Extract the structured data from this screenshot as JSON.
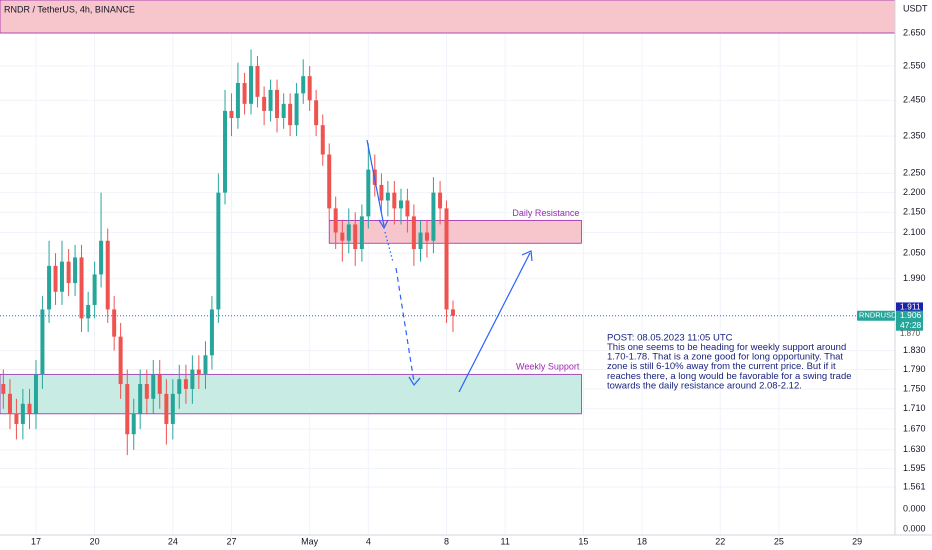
{
  "chart_data": {
    "type": "candlestick",
    "title": "RNDR / TetherUS, 4h, BINANCE",
    "currency": "USDT",
    "log_scale": true,
    "grid": true,
    "up_color": "#26a69a",
    "down_color": "#ef5350",
    "xlim": [
      -1.84,
      43.94
    ],
    "xticks": [
      {
        "value": 0,
        "label": "17"
      },
      {
        "value": 3,
        "label": "20"
      },
      {
        "value": 7,
        "label": "24"
      },
      {
        "value": 10,
        "label": "27"
      },
      {
        "value": 14,
        "label": "May"
      },
      {
        "value": 17,
        "label": "4"
      },
      {
        "value": 21,
        "label": "8"
      },
      {
        "value": 24,
        "label": "11"
      },
      {
        "value": 28,
        "label": "15"
      },
      {
        "value": 31,
        "label": "18"
      },
      {
        "value": 35,
        "label": "22"
      },
      {
        "value": 38,
        "label": "25"
      },
      {
        "value": 42,
        "label": "29"
      }
    ],
    "ylim": [
      1.476,
      2.754
    ],
    "yticks": [
      {
        "value": 2.65,
        "label": "2.650"
      },
      {
        "value": 2.55,
        "label": "2.550"
      },
      {
        "value": 2.45,
        "label": "2.450"
      },
      {
        "value": 2.35,
        "label": "2.350"
      },
      {
        "value": 2.25,
        "label": "2.250"
      },
      {
        "value": 2.2,
        "label": "2.200"
      },
      {
        "value": 2.15,
        "label": "2.150"
      },
      {
        "value": 2.1,
        "label": "2.100"
      },
      {
        "value": 2.05,
        "label": "2.050"
      },
      {
        "value": 1.99,
        "label": "1.990"
      },
      {
        "value": 1.83,
        "label": "1.830"
      },
      {
        "value": 1.79,
        "label": "1.790"
      },
      {
        "value": 1.75,
        "label": "1.750"
      },
      {
        "value": 1.71,
        "label": "1.710"
      },
      {
        "value": 1.67,
        "label": "1.670"
      },
      {
        "value": 1.63,
        "label": "1.630"
      },
      1.595,
      1.561
    ],
    "lower_axis_labels": [
      "0.000",
      "0.000"
    ],
    "x": [
      -1.67,
      -1.33,
      -1.0,
      -0.67,
      -0.33,
      0.0,
      0.33,
      0.67,
      1.0,
      1.33,
      1.67,
      2.0,
      2.33,
      2.67,
      3.0,
      3.33,
      3.67,
      4.0,
      4.33,
      4.67,
      5.0,
      5.33,
      5.67,
      6.0,
      6.33,
      6.67,
      7.0,
      7.33,
      7.67,
      8.0,
      8.33,
      8.67,
      9.0,
      9.33,
      9.67,
      10.0,
      10.33,
      10.67,
      11.0,
      11.33,
      11.67,
      12.0,
      12.33,
      12.67,
      13.0,
      13.33,
      13.67,
      14.0,
      14.33,
      14.67,
      15.0,
      15.33,
      15.67,
      16.0,
      16.33,
      16.67,
      17.0,
      17.33,
      17.67,
      18.0,
      18.33,
      18.67,
      19.0,
      19.33,
      19.67,
      20.0,
      20.33,
      20.67,
      21.0,
      21.33
    ],
    "open": [
      1.76,
      1.74,
      1.7,
      1.68,
      1.72,
      1.7,
      1.78,
      1.92,
      2.02,
      1.96,
      2.03,
      1.98,
      2.04,
      1.9,
      1.93,
      2.0,
      2.08,
      1.92,
      1.86,
      1.76,
      1.66,
      1.7,
      1.76,
      1.73,
      1.78,
      1.74,
      1.68,
      1.74,
      1.77,
      1.75,
      1.79,
      1.78,
      1.82,
      1.92,
      2.2,
      2.42,
      2.4,
      2.5,
      2.44,
      2.55,
      2.46,
      2.42,
      2.48,
      2.4,
      2.44,
      2.38,
      2.47,
      2.52,
      2.45,
      2.38,
      2.3,
      2.16,
      2.1,
      2.08,
      2.12,
      2.06,
      2.14,
      2.26,
      2.22,
      2.18,
      2.2,
      2.16,
      2.18,
      2.14,
      2.06,
      2.1,
      2.08,
      2.2,
      2.16,
      1.92
    ],
    "high": [
      1.79,
      1.77,
      1.73,
      1.75,
      1.75,
      1.81,
      1.95,
      2.08,
      2.05,
      2.08,
      2.06,
      2.07,
      2.07,
      1.96,
      2.03,
      2.2,
      2.11,
      1.95,
      1.89,
      1.79,
      1.73,
      1.79,
      1.79,
      1.81,
      1.81,
      1.77,
      1.77,
      1.8,
      1.8,
      1.82,
      1.82,
      1.85,
      1.95,
      2.25,
      2.48,
      2.47,
      2.56,
      2.53,
      2.6,
      2.58,
      2.49,
      2.51,
      2.51,
      2.47,
      2.47,
      2.5,
      2.57,
      2.55,
      2.48,
      2.41,
      2.33,
      2.19,
      2.13,
      2.16,
      2.15,
      2.17,
      2.33,
      2.3,
      2.25,
      2.23,
      2.23,
      2.21,
      2.21,
      2.17,
      2.13,
      2.13,
      2.24,
      2.23,
      2.18,
      1.94
    ],
    "low": [
      1.71,
      1.67,
      1.65,
      1.65,
      1.67,
      1.67,
      1.75,
      1.89,
      1.93,
      1.93,
      1.95,
      1.95,
      1.87,
      1.87,
      1.9,
      1.97,
      1.89,
      1.83,
      1.73,
      1.62,
      1.63,
      1.67,
      1.7,
      1.7,
      1.71,
      1.64,
      1.65,
      1.71,
      1.72,
      1.72,
      1.75,
      1.75,
      1.79,
      1.89,
      2.17,
      2.35,
      2.37,
      2.41,
      2.41,
      2.43,
      2.38,
      2.39,
      2.36,
      2.37,
      2.35,
      2.35,
      2.44,
      2.42,
      2.35,
      2.27,
      2.13,
      2.06,
      2.03,
      2.05,
      2.02,
      2.03,
      2.11,
      2.19,
      2.15,
      2.14,
      2.12,
      2.12,
      2.1,
      2.02,
      2.03,
      2.04,
      2.05,
      2.12,
      1.89,
      1.87
    ],
    "close": [
      1.74,
      1.7,
      1.68,
      1.72,
      1.7,
      1.78,
      1.92,
      2.02,
      1.96,
      2.03,
      1.98,
      2.04,
      1.9,
      1.93,
      2.0,
      2.08,
      1.92,
      1.86,
      1.76,
      1.66,
      1.7,
      1.76,
      1.73,
      1.78,
      1.74,
      1.68,
      1.74,
      1.77,
      1.75,
      1.79,
      1.78,
      1.82,
      1.92,
      2.2,
      2.42,
      2.4,
      2.5,
      2.44,
      2.55,
      2.46,
      2.42,
      2.48,
      2.4,
      2.44,
      2.38,
      2.47,
      2.52,
      2.45,
      2.38,
      2.3,
      2.16,
      2.1,
      2.08,
      2.12,
      2.06,
      2.14,
      2.26,
      2.22,
      2.18,
      2.2,
      2.16,
      2.18,
      2.14,
      2.06,
      2.1,
      2.08,
      2.2,
      2.16,
      1.92,
      1.906
    ],
    "zones": [
      {
        "color": "#f7c5cc",
        "x": [
          -1.84,
          43.94
        ],
        "price": [
          2.65,
          2.754
        ]
      },
      {
        "name": "Daily Resistance",
        "color": "#f7c5cc",
        "x": [
          15.0,
          27.9
        ],
        "price": [
          2.074,
          2.13
        ]
      },
      {
        "name": "Weekly Support",
        "color": "#c8ebe3",
        "x": [
          -1.84,
          27.9
        ],
        "price": [
          1.7,
          1.78
        ]
      }
    ],
    "current_price": 1.906,
    "marker_price": 1.911,
    "symbol": "RNDRUSDT",
    "countdown": "47:28",
    "hidden_label": "1.870",
    "annotation": [
      "POST: 08.05.2023 11:05 UTC",
      "This one seems to be heading for weekly support around",
      "1.70-1.78. That is a zone good for long opportunity. That",
      "zone is still 6-10% away from the current price. But if it",
      "reaches there, a long would be favorable for a swing trade",
      "towards the daily resistance around 2.08-2.12."
    ]
  }
}
